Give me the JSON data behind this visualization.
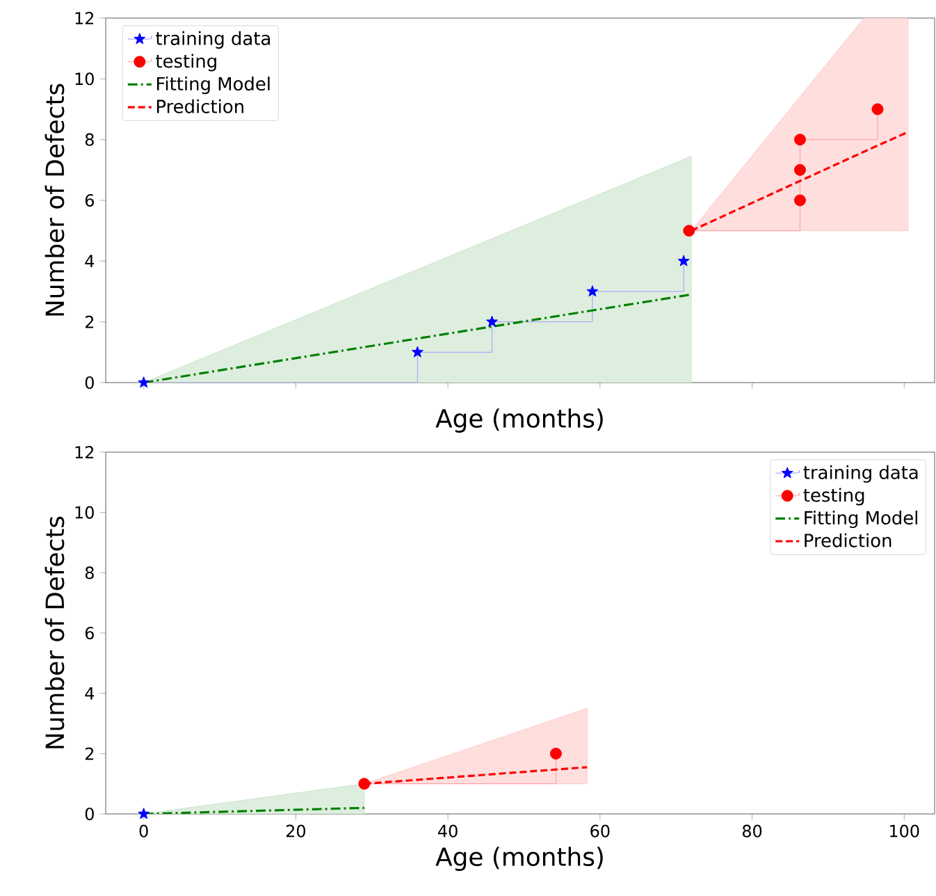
{
  "chart_data": [
    {
      "type": "line",
      "xlabel": "Age (months)",
      "ylabel": "Number of Defects",
      "xlim": [
        -5,
        104
      ],
      "ylim": [
        0,
        12
      ],
      "xticks": [
        0,
        20,
        40,
        60,
        80,
        100
      ],
      "yticks": [
        0,
        2,
        4,
        6,
        8,
        10,
        12
      ],
      "tick_labels": "y",
      "legend": "top left",
      "series": [
        {
          "name": "training data",
          "type": "step",
          "color": "#0000ff",
          "marker": "star",
          "x": [
            0,
            36,
            45.8,
            59,
            71
          ],
          "values": [
            0,
            1,
            2,
            3,
            4
          ]
        },
        {
          "name": "testing",
          "type": "step",
          "color": "#ff0000",
          "marker": "circle",
          "x": [
            71.7,
            86.3,
            86.3,
            86.3,
            96.5
          ],
          "values": [
            5,
            6,
            7,
            8,
            9
          ]
        },
        {
          "name": "Fitting Model",
          "type": "line",
          "color": "#008000",
          "marker": "none",
          "line_style": "dashdot",
          "x": [
            0,
            72
          ],
          "values": [
            0,
            2.9
          ],
          "lower": [
            0,
            0
          ],
          "upper": [
            0,
            7.45
          ]
        },
        {
          "name": "Prediction",
          "type": "line",
          "color": "#ff0000",
          "marker": "none",
          "line_style": "dashed",
          "x": [
            72,
            94.7,
            100.5
          ],
          "values": [
            5,
            7.6,
            8.25
          ],
          "lower": [
            5,
            5,
            5
          ],
          "upper": [
            5,
            12,
            12
          ]
        }
      ]
    },
    {
      "type": "line",
      "xlabel": "Age (months)",
      "ylabel": "Number of Defects",
      "xlim": [
        -5,
        104
      ],
      "ylim": [
        0,
        12
      ],
      "xticks": [
        0,
        20,
        40,
        60,
        80,
        100
      ],
      "yticks": [
        0,
        2,
        4,
        6,
        8,
        10,
        12
      ],
      "legend": "top right",
      "series": [
        {
          "name": "training data",
          "type": "step",
          "color": "#0000ff",
          "marker": "star",
          "x": [
            0
          ],
          "values": [
            0
          ]
        },
        {
          "name": "testing",
          "type": "step",
          "color": "#ff0000",
          "marker": "circle",
          "x": [
            29,
            54.2
          ],
          "values": [
            1,
            2
          ]
        },
        {
          "name": "Fitting Model",
          "type": "line",
          "color": "#008000",
          "marker": "none",
          "line_style": "dashdot",
          "x": [
            0,
            29
          ],
          "values": [
            0,
            0.2
          ],
          "lower": [
            0,
            0
          ],
          "upper": [
            0,
            1
          ]
        },
        {
          "name": "Prediction",
          "type": "line",
          "color": "#ff0000",
          "marker": "none",
          "line_style": "dashed",
          "x": [
            29,
            58.3
          ],
          "values": [
            1,
            1.55
          ],
          "lower": [
            1,
            1
          ],
          "upper": [
            1,
            3.5
          ]
        }
      ]
    }
  ]
}
